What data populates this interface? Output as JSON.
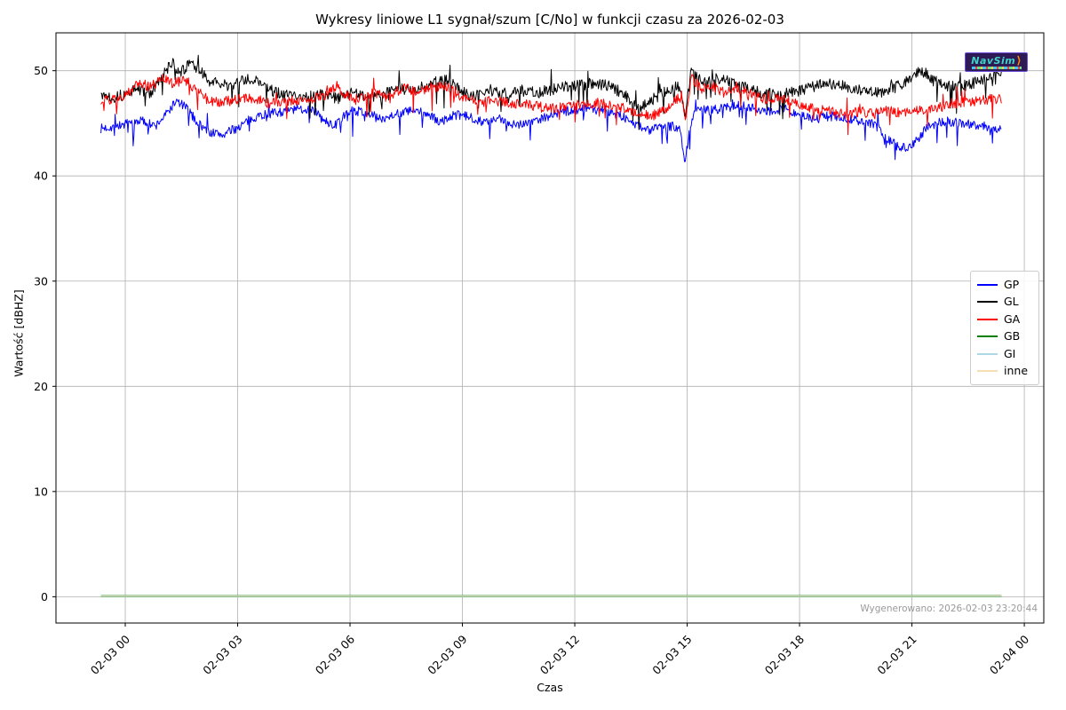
{
  "footer": {
    "generated_text": "Wygenerowano: 2026-02-03 23:20:44"
  },
  "watermark": {
    "text": "NavSim"
  },
  "chart_data": {
    "type": "line",
    "title": "Wykresy liniowe L1 sygnał/szum [C/No] w funkcji czasu za 2026-02-03",
    "xlabel": "Czas",
    "ylabel": "Wartość [dBHZ]",
    "x_unit": "hours since 2026-02-03 00:00",
    "xlim": [
      -1.85,
      24.52
    ],
    "ylim": [
      -2.5,
      53.6
    ],
    "grid": true,
    "grid_color": "#b0b0b0",
    "legend_position": "center right",
    "x_ticks": [
      {
        "h": 0,
        "label": "02-03 00"
      },
      {
        "h": 3,
        "label": "02-03 03"
      },
      {
        "h": 6,
        "label": "02-03 06"
      },
      {
        "h": 9,
        "label": "02-03 09"
      },
      {
        "h": 12,
        "label": "02-03 12"
      },
      {
        "h": 15,
        "label": "02-03 15"
      },
      {
        "h": 18,
        "label": "02-03 18"
      },
      {
        "h": 21,
        "label": "02-03 21"
      },
      {
        "h": 24,
        "label": "02-04 00"
      }
    ],
    "y_ticks": [
      0,
      10,
      20,
      30,
      40,
      50
    ],
    "series": [
      {
        "name": "GP",
        "color": "#0000ff",
        "width": 1.0,
        "seed": 7,
        "noise": 0.45,
        "spike_prob": 0.04,
        "spike_amp": 1.7,
        "spike_up_ratio": 0.15,
        "points": [
          [
            -0.65,
            44.5
          ],
          [
            -0.3,
            44.7
          ],
          [
            0,
            44.9
          ],
          [
            0.4,
            45.3
          ],
          [
            0.8,
            44.7
          ],
          [
            1.1,
            45.9
          ],
          [
            1.35,
            47.1
          ],
          [
            1.6,
            46.6
          ],
          [
            1.9,
            45.2
          ],
          [
            2.2,
            44.2
          ],
          [
            2.6,
            43.9
          ],
          [
            3.0,
            44.6
          ],
          [
            3.5,
            45.7
          ],
          [
            4.0,
            46.0
          ],
          [
            4.5,
            46.3
          ],
          [
            5.0,
            46.4
          ],
          [
            5.3,
            45.2
          ],
          [
            5.6,
            44.8
          ],
          [
            6.0,
            46.2
          ],
          [
            6.4,
            46.1
          ],
          [
            6.8,
            45.4
          ],
          [
            7.2,
            45.9
          ],
          [
            7.6,
            46.2
          ],
          [
            8.0,
            46.0
          ],
          [
            8.4,
            45.1
          ],
          [
            8.8,
            45.8
          ],
          [
            9.2,
            45.6
          ],
          [
            9.6,
            45.1
          ],
          [
            10.0,
            45.4
          ],
          [
            10.4,
            44.9
          ],
          [
            10.8,
            45.1
          ],
          [
            11.2,
            45.6
          ],
          [
            11.6,
            46.0
          ],
          [
            12.0,
            46.3
          ],
          [
            12.4,
            46.5
          ],
          [
            12.8,
            46.3
          ],
          [
            13.2,
            45.8
          ],
          [
            13.6,
            44.9
          ],
          [
            14.0,
            44.4
          ],
          [
            14.4,
            44.8
          ],
          [
            14.8,
            44.6
          ],
          [
            14.95,
            41.3
          ],
          [
            15.05,
            44.2
          ],
          [
            15.2,
            46.4
          ],
          [
            15.6,
            46.2
          ],
          [
            16.0,
            46.5
          ],
          [
            16.4,
            46.7
          ],
          [
            16.8,
            46.4
          ],
          [
            17.2,
            46.2
          ],
          [
            17.6,
            46.4
          ],
          [
            18.0,
            45.8
          ],
          [
            18.4,
            45.4
          ],
          [
            18.8,
            45.7
          ],
          [
            19.2,
            45.5
          ],
          [
            19.6,
            45.2
          ],
          [
            20.0,
            44.9
          ],
          [
            20.4,
            43.4
          ],
          [
            20.7,
            42.6
          ],
          [
            21.0,
            42.9
          ],
          [
            21.4,
            44.6
          ],
          [
            21.8,
            45.2
          ],
          [
            22.2,
            45.1
          ],
          [
            22.6,
            44.9
          ],
          [
            23.0,
            44.7
          ],
          [
            23.39,
            44.4
          ]
        ]
      },
      {
        "name": "GL",
        "color": "#000000",
        "width": 1.0,
        "seed": 13,
        "noise": 0.55,
        "spike_prob": 0.05,
        "spike_amp": 1.9,
        "spike_up_ratio": 0.35,
        "points": [
          [
            -0.65,
            47.8
          ],
          [
            -0.3,
            47.5
          ],
          [
            0,
            47.7
          ],
          [
            0.3,
            48.3
          ],
          [
            0.7,
            47.9
          ],
          [
            1.0,
            49.6
          ],
          [
            1.25,
            50.7
          ],
          [
            1.5,
            49.9
          ],
          [
            1.75,
            50.7
          ],
          [
            2.0,
            49.9
          ],
          [
            2.3,
            48.9
          ],
          [
            2.7,
            48.6
          ],
          [
            3.1,
            49.0
          ],
          [
            3.45,
            49.3
          ],
          [
            3.8,
            48.3
          ],
          [
            4.2,
            47.7
          ],
          [
            4.7,
            47.5
          ],
          [
            5.2,
            47.8
          ],
          [
            5.7,
            47.3
          ],
          [
            6.1,
            48.0
          ],
          [
            6.5,
            47.5
          ],
          [
            7.0,
            47.9
          ],
          [
            7.4,
            48.3
          ],
          [
            7.9,
            48.1
          ],
          [
            8.3,
            48.9
          ],
          [
            8.65,
            49.2
          ],
          [
            9.0,
            48.0
          ],
          [
            9.3,
            47.5
          ],
          [
            9.7,
            48.2
          ],
          [
            10.1,
            47.8
          ],
          [
            10.5,
            48.2
          ],
          [
            10.9,
            47.9
          ],
          [
            11.3,
            48.1
          ],
          [
            11.7,
            48.5
          ],
          [
            12.1,
            48.6
          ],
          [
            12.5,
            48.8
          ],
          [
            12.9,
            48.6
          ],
          [
            13.3,
            47.8
          ],
          [
            13.7,
            46.5
          ],
          [
            14.1,
            47.3
          ],
          [
            14.5,
            48.3
          ],
          [
            14.8,
            48.6
          ],
          [
            14.95,
            45.2
          ],
          [
            15.1,
            50.2
          ],
          [
            15.45,
            48.9
          ],
          [
            15.8,
            49.2
          ],
          [
            16.2,
            48.9
          ],
          [
            16.6,
            48.3
          ],
          [
            17.0,
            47.9
          ],
          [
            17.4,
            47.7
          ],
          [
            17.8,
            47.9
          ],
          [
            18.2,
            48.3
          ],
          [
            18.6,
            48.7
          ],
          [
            19.0,
            48.8
          ],
          [
            19.4,
            48.3
          ],
          [
            19.8,
            47.9
          ],
          [
            20.2,
            48.0
          ],
          [
            20.6,
            48.5
          ],
          [
            21.0,
            49.4
          ],
          [
            21.25,
            50.1
          ],
          [
            21.6,
            49.0
          ],
          [
            22.0,
            48.5
          ],
          [
            22.4,
            48.6
          ],
          [
            22.8,
            49.0
          ],
          [
            23.1,
            49.5
          ],
          [
            23.39,
            50.0
          ]
        ]
      },
      {
        "name": "GA",
        "color": "#ff0000",
        "width": 1.0,
        "seed": 29,
        "noise": 0.5,
        "spike_prob": 0.04,
        "spike_amp": 1.7,
        "spike_up_ratio": 0.25,
        "points": [
          [
            -0.65,
            47.1
          ],
          [
            -0.3,
            47.3
          ],
          [
            0,
            47.6
          ],
          [
            0.35,
            48.8
          ],
          [
            0.7,
            48.5
          ],
          [
            1.0,
            49.2
          ],
          [
            1.3,
            48.8
          ],
          [
            1.6,
            49.1
          ],
          [
            1.9,
            48.2
          ],
          [
            2.2,
            47.2
          ],
          [
            2.6,
            47.0
          ],
          [
            3.0,
            47.3
          ],
          [
            3.4,
            47.4
          ],
          [
            3.8,
            46.9
          ],
          [
            4.2,
            47.1
          ],
          [
            4.6,
            47.2
          ],
          [
            5.0,
            47.4
          ],
          [
            5.4,
            47.7
          ],
          [
            5.65,
            48.6
          ],
          [
            5.9,
            47.6
          ],
          [
            6.2,
            47.2
          ],
          [
            6.6,
            47.8
          ],
          [
            7.0,
            47.5
          ],
          [
            7.4,
            48.3
          ],
          [
            7.8,
            48.1
          ],
          [
            8.2,
            48.4
          ],
          [
            8.6,
            48.5
          ],
          [
            9.0,
            47.4
          ],
          [
            9.4,
            47.0
          ],
          [
            9.8,
            47.2
          ],
          [
            10.2,
            47.0
          ],
          [
            10.6,
            46.8
          ],
          [
            11.0,
            46.6
          ],
          [
            11.4,
            46.4
          ],
          [
            11.8,
            46.6
          ],
          [
            12.2,
            46.8
          ],
          [
            12.6,
            46.9
          ],
          [
            13.0,
            46.7
          ],
          [
            13.4,
            46.2
          ],
          [
            13.8,
            45.7
          ],
          [
            14.2,
            45.8
          ],
          [
            14.6,
            46.9
          ],
          [
            14.85,
            47.6
          ],
          [
            14.95,
            44.9
          ],
          [
            15.1,
            49.4
          ],
          [
            15.35,
            48.3
          ],
          [
            15.7,
            48.5
          ],
          [
            16.0,
            47.9
          ],
          [
            16.4,
            48.2
          ],
          [
            16.8,
            47.6
          ],
          [
            17.2,
            47.2
          ],
          [
            17.6,
            47.3
          ],
          [
            18.0,
            46.8
          ],
          [
            18.4,
            46.4
          ],
          [
            18.8,
            46.1
          ],
          [
            19.2,
            45.9
          ],
          [
            19.6,
            46.1
          ],
          [
            20.0,
            45.9
          ],
          [
            20.4,
            46.2
          ],
          [
            20.8,
            46.0
          ],
          [
            21.2,
            46.2
          ],
          [
            21.6,
            46.4
          ],
          [
            22.0,
            46.8
          ],
          [
            22.4,
            47.0
          ],
          [
            22.8,
            47.2
          ],
          [
            23.1,
            47.3
          ],
          [
            23.39,
            47.4
          ]
        ]
      },
      {
        "name": "GB",
        "color": "#008000",
        "width": 2.4,
        "flat_value": 0.05,
        "points": [
          [
            -0.65,
            0.05
          ],
          [
            23.39,
            0.05
          ]
        ]
      },
      {
        "name": "GI",
        "color": "#add8e6",
        "width": 1.6,
        "flat_value": 0.05,
        "points": [
          [
            -0.65,
            0.05
          ],
          [
            23.39,
            0.05
          ]
        ]
      },
      {
        "name": "inne",
        "color": "#f5deb3",
        "width": 1.0,
        "flat_value": 0.05,
        "points": [
          [
            -0.65,
            0.05
          ],
          [
            23.39,
            0.05
          ]
        ]
      }
    ]
  }
}
